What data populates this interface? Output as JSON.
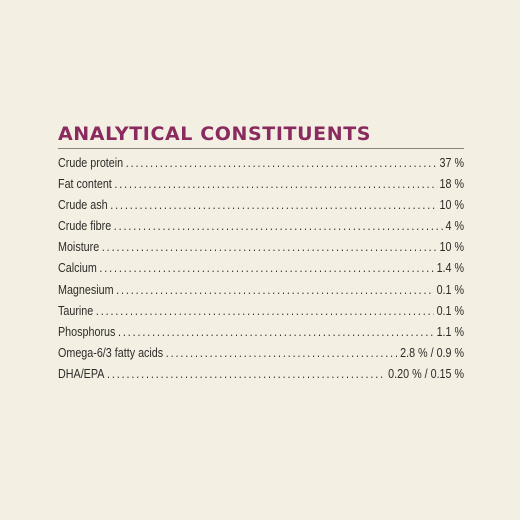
{
  "heading": "ANALYTICAL CONSTITUENTS",
  "colors": {
    "background": "#f3efe2",
    "heading": "#8a2a5e",
    "text": "#2f2b29"
  },
  "rows": [
    {
      "label": "Crude protein",
      "value": "37 %"
    },
    {
      "label": "Fat content",
      "value": "18 %"
    },
    {
      "label": "Crude ash",
      "value": "10 %"
    },
    {
      "label": "Crude fibre",
      "value": "4 %"
    },
    {
      "label": "Moisture",
      "value": "10 %"
    },
    {
      "label": "Calcium",
      "value": "1.4 %"
    },
    {
      "label": "Magnesium",
      "value": "0.1 %"
    },
    {
      "label": "Taurine",
      "value": "0.1 %"
    },
    {
      "label": "Phosphorus",
      "value": "1.1 %"
    },
    {
      "label": "Omega-6/3 fatty acids",
      "value": "2.8 % / 0.9 %"
    },
    {
      "label": "DHA/EPA",
      "value": "0.20 % / 0.15 %"
    }
  ]
}
